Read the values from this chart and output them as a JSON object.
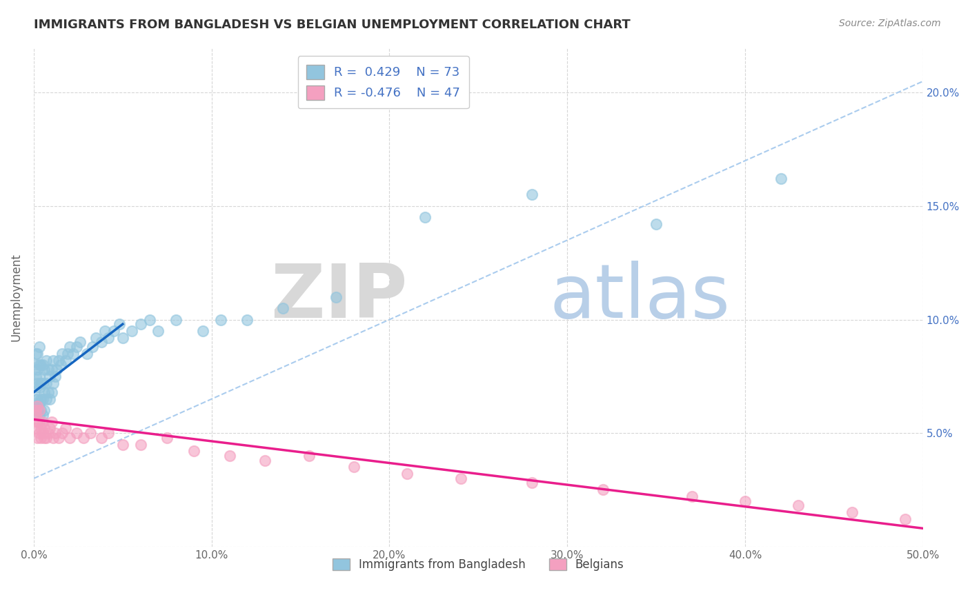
{
  "title": "IMMIGRANTS FROM BANGLADESH VS BELGIAN UNEMPLOYMENT CORRELATION CHART",
  "source": "Source: ZipAtlas.com",
  "ylabel": "Unemployment",
  "xmin": 0.0,
  "xmax": 0.5,
  "ymin": 0.0,
  "ymax": 0.22,
  "color_blue": "#92C5DE",
  "color_pink": "#F4A0C0",
  "color_trendline_blue": "#1565C0",
  "color_trendline_pink": "#E91E8C",
  "color_trendline_gray": "#AACCEE",
  "blue_scatter_x": [
    0.001,
    0.001,
    0.001,
    0.001,
    0.001,
    0.001,
    0.002,
    0.002,
    0.002,
    0.002,
    0.002,
    0.003,
    0.003,
    0.003,
    0.003,
    0.003,
    0.003,
    0.004,
    0.004,
    0.004,
    0.004,
    0.005,
    0.005,
    0.005,
    0.005,
    0.006,
    0.006,
    0.006,
    0.007,
    0.007,
    0.007,
    0.008,
    0.008,
    0.009,
    0.009,
    0.01,
    0.01,
    0.011,
    0.011,
    0.012,
    0.013,
    0.014,
    0.015,
    0.016,
    0.018,
    0.019,
    0.02,
    0.022,
    0.024,
    0.026,
    0.03,
    0.033,
    0.035,
    0.038,
    0.04,
    0.042,
    0.045,
    0.048,
    0.05,
    0.055,
    0.06,
    0.065,
    0.07,
    0.08,
    0.095,
    0.105,
    0.12,
    0.14,
    0.17,
    0.22,
    0.28,
    0.35,
    0.42
  ],
  "blue_scatter_y": [
    0.06,
    0.065,
    0.07,
    0.075,
    0.08,
    0.085,
    0.06,
    0.065,
    0.072,
    0.078,
    0.085,
    0.058,
    0.063,
    0.07,
    0.075,
    0.08,
    0.088,
    0.06,
    0.065,
    0.072,
    0.08,
    0.058,
    0.065,
    0.072,
    0.08,
    0.06,
    0.068,
    0.078,
    0.065,
    0.072,
    0.082,
    0.068,
    0.078,
    0.065,
    0.075,
    0.068,
    0.078,
    0.072,
    0.082,
    0.075,
    0.078,
    0.082,
    0.08,
    0.085,
    0.082,
    0.085,
    0.088,
    0.085,
    0.088,
    0.09,
    0.085,
    0.088,
    0.092,
    0.09,
    0.095,
    0.092,
    0.095,
    0.098,
    0.092,
    0.095,
    0.098,
    0.1,
    0.095,
    0.1,
    0.095,
    0.1,
    0.1,
    0.105,
    0.11,
    0.145,
    0.155,
    0.142,
    0.162
  ],
  "pink_scatter_x": [
    0.001,
    0.001,
    0.001,
    0.002,
    0.002,
    0.002,
    0.003,
    0.003,
    0.003,
    0.004,
    0.004,
    0.005,
    0.005,
    0.006,
    0.006,
    0.007,
    0.008,
    0.009,
    0.01,
    0.011,
    0.012,
    0.014,
    0.016,
    0.018,
    0.02,
    0.024,
    0.028,
    0.032,
    0.038,
    0.042,
    0.05,
    0.06,
    0.075,
    0.09,
    0.11,
    0.13,
    0.155,
    0.18,
    0.21,
    0.24,
    0.28,
    0.32,
    0.37,
    0.4,
    0.43,
    0.46,
    0.49
  ],
  "pink_scatter_y": [
    0.052,
    0.058,
    0.06,
    0.048,
    0.055,
    0.062,
    0.05,
    0.055,
    0.06,
    0.048,
    0.052,
    0.05,
    0.055,
    0.048,
    0.052,
    0.048,
    0.05,
    0.052,
    0.055,
    0.048,
    0.05,
    0.048,
    0.05,
    0.052,
    0.048,
    0.05,
    0.048,
    0.05,
    0.048,
    0.05,
    0.045,
    0.045,
    0.048,
    0.042,
    0.04,
    0.038,
    0.04,
    0.035,
    0.032,
    0.03,
    0.028,
    0.025,
    0.022,
    0.02,
    0.018,
    0.015,
    0.012
  ],
  "blue_trend_x": [
    0.0,
    0.05
  ],
  "blue_trend_y": [
    0.068,
    0.098
  ],
  "pink_trend_x": [
    0.0,
    0.5
  ],
  "pink_trend_y": [
    0.056,
    0.008
  ],
  "gray_trend_x": [
    0.0,
    0.5
  ],
  "gray_trend_y": [
    0.03,
    0.205
  ]
}
